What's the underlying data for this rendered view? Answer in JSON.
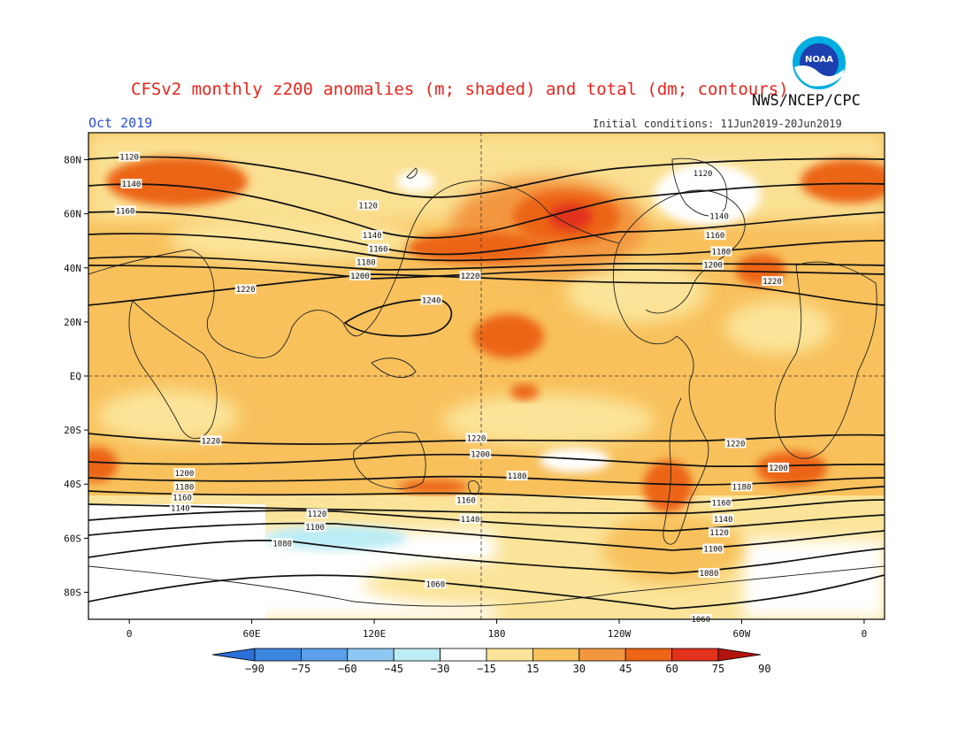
{
  "header": {
    "title": "CFSv2 monthly z200 anomalies (m; shaded) and total (dm; contours)",
    "agency": "NWS/NCEP/CPC",
    "month": "Oct 2019",
    "initial_conditions": "Initial conditions: 11Jun2019-20Jun2019",
    "logo_text": "NOAA"
  },
  "axes": {
    "lat_labels": [
      {
        "text": "80N",
        "lat": 80
      },
      {
        "text": "60N",
        "lat": 60
      },
      {
        "text": "40N",
        "lat": 40
      },
      {
        "text": "20N",
        "lat": 20
      },
      {
        "text": "EQ",
        "lat": 0
      },
      {
        "text": "20S",
        "lat": -20
      },
      {
        "text": "40S",
        "lat": -40
      },
      {
        "text": "60S",
        "lat": -60
      },
      {
        "text": "80S",
        "lat": -80
      }
    ],
    "lon_labels": [
      {
        "text": "0",
        "lon": 0
      },
      {
        "text": "60E",
        "lon": 60
      },
      {
        "text": "120E",
        "lon": 120
      },
      {
        "text": "180",
        "lon": 180
      },
      {
        "text": "120W",
        "lon": 240
      },
      {
        "text": "60W",
        "lon": 300
      },
      {
        "text": "0",
        "lon": 360
      }
    ],
    "lon_range": [
      -20,
      370
    ],
    "lat_range": [
      -90,
      90
    ]
  },
  "colorbar": {
    "colors": [
      "#2b6fd8",
      "#3d86e0",
      "#5aa0ea",
      "#8ec8f2",
      "#bcecf6",
      "#ffffff",
      "#fbe499",
      "#f8c15c",
      "#f3973f",
      "#ec6516",
      "#e2321b",
      "#b4140e"
    ],
    "labels": [
      "-90",
      "-75",
      "-60",
      "-45",
      "-30",
      "-15",
      "15",
      "30",
      "45",
      "60",
      "75",
      "90"
    ]
  },
  "contour_labels": [
    {
      "text": "1120",
      "lon": 0,
      "lat": 81
    },
    {
      "text": "1140",
      "lon": 1,
      "lat": 71
    },
    {
      "text": "1160",
      "lon": -2,
      "lat": 61
    },
    {
      "text": "1120",
      "lon": 117,
      "lat": 63
    },
    {
      "text": "1140",
      "lon": 119,
      "lat": 52
    },
    {
      "text": "1160",
      "lon": 122,
      "lat": 47
    },
    {
      "text": "1180",
      "lon": 116,
      "lat": 42
    },
    {
      "text": "1200",
      "lon": 113,
      "lat": 37
    },
    {
      "text": "1220",
      "lon": 57,
      "lat": 32
    },
    {
      "text": "1220",
      "lon": 167,
      "lat": 37
    },
    {
      "text": "1240",
      "lon": 148,
      "lat": 28
    },
    {
      "text": "1120",
      "lon": 281,
      "lat": 75
    },
    {
      "text": "1140",
      "lon": 289,
      "lat": 59
    },
    {
      "text": "1160",
      "lon": 287,
      "lat": 52
    },
    {
      "text": "1180",
      "lon": 290,
      "lat": 46
    },
    {
      "text": "1200",
      "lon": 286,
      "lat": 41
    },
    {
      "text": "1220",
      "lon": 315,
      "lat": 35
    },
    {
      "text": "1220",
      "lon": 40,
      "lat": -24
    },
    {
      "text": "1220",
      "lon": 170,
      "lat": -23
    },
    {
      "text": "1220",
      "lon": 297,
      "lat": -25
    },
    {
      "text": "1200",
      "lon": 172,
      "lat": -29
    },
    {
      "text": "1200",
      "lon": 318,
      "lat": -34
    },
    {
      "text": "1200",
      "lon": 27,
      "lat": -36
    },
    {
      "text": "1180",
      "lon": 190,
      "lat": -37
    },
    {
      "text": "1180",
      "lon": 27,
      "lat": -41
    },
    {
      "text": "1180",
      "lon": 300,
      "lat": -41
    },
    {
      "text": "1160",
      "lon": 26,
      "lat": -45
    },
    {
      "text": "1160",
      "lon": 165,
      "lat": -46
    },
    {
      "text": "1160",
      "lon": 290,
      "lat": -47
    },
    {
      "text": "1140",
      "lon": 25,
      "lat": -49
    },
    {
      "text": "1140",
      "lon": 167,
      "lat": -53
    },
    {
      "text": "1140",
      "lon": 291,
      "lat": -53
    },
    {
      "text": "1120",
      "lon": 92,
      "lat": -51
    },
    {
      "text": "1120",
      "lon": 289,
      "lat": -58
    },
    {
      "text": "1100",
      "lon": 91,
      "lat": -56
    },
    {
      "text": "1100",
      "lon": 286,
      "lat": -64
    },
    {
      "text": "1080",
      "lon": 75,
      "lat": -62
    },
    {
      "text": "1080",
      "lon": 284,
      "lat": -73
    },
    {
      "text": "1060",
      "lon": 150,
      "lat": -77
    },
    {
      "text": "1060",
      "lon": 280,
      "lat": -90
    }
  ]
}
